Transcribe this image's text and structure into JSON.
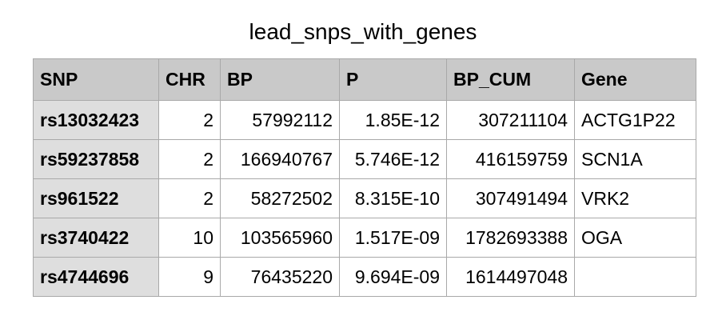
{
  "title": "lead_snps_with_genes",
  "table": {
    "columns": [
      "SNP",
      "CHR",
      "BP",
      "P",
      "BP_CUM",
      "Gene"
    ],
    "rows": [
      {
        "SNP": "rs13032423",
        "CHR": "2",
        "BP": "57992112",
        "P": "1.85E-12",
        "BP_CUM": "307211104",
        "Gene": "ACTG1P22"
      },
      {
        "SNP": "rs59237858",
        "CHR": "2",
        "BP": "166940767",
        "P": "5.746E-12",
        "BP_CUM": "416159759",
        "Gene": "SCN1A"
      },
      {
        "SNP": "rs961522",
        "CHR": "2",
        "BP": "58272502",
        "P": "8.315E-10",
        "BP_CUM": "307491494",
        "Gene": "VRK2"
      },
      {
        "SNP": "rs3740422",
        "CHR": "10",
        "BP": "103565960",
        "P": "1.517E-09",
        "BP_CUM": "1782693388",
        "Gene": "OGA"
      },
      {
        "SNP": "rs4744696",
        "CHR": "9",
        "BP": "76435220",
        "P": "9.694E-09",
        "BP_CUM": "1614497048",
        "Gene": ""
      }
    ]
  }
}
